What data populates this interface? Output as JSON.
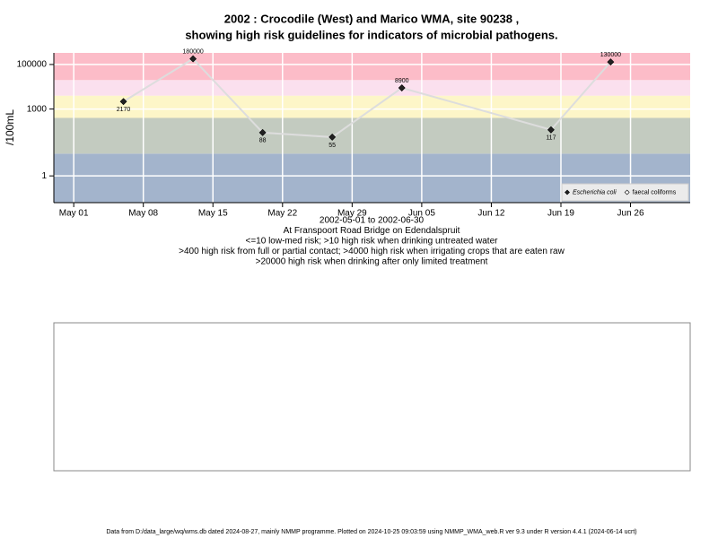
{
  "chart_data": {
    "type": "line",
    "log_y": true,
    "title": [
      "2002 : Crocodile (West) and Marico WMA, site 90238 ,",
      "showing high risk guidelines for indicators of microbial pathogens."
    ],
    "ylabel": "/100mL",
    "xlabel": [
      "2002-05-01 to 2002-06-30",
      "At Franspoort Road Bridge on Edendalspruit",
      "<=10 low-med risk; >10 high risk when drinking untreated water",
      ">400 high risk from full or partial contact; >4000 high risk when irrigating crops that are eaten raw",
      ">20000 high risk when drinking after only limited treatment"
    ],
    "footer": "Data from D:/data_large/wq/wms.db dated 2024-08-27, mainly NMMP programme. Plotted on 2024-10-25 09:03:59 using NMMP_WMA_web.R ver 9.3 under R version 4.4.1 (2024-06-14 ucrt)",
    "x": [
      "2002-05-06",
      "2002-05-13",
      "2002-05-20",
      "2002-05-27",
      "2002-06-03",
      "2002-06-18",
      "2002-06-24"
    ],
    "series": [
      {
        "name": "Escherichia coli",
        "color": "#222222",
        "line_color": "#dddddd",
        "values": [
          2170,
          180000,
          88,
          55,
          8900,
          117,
          130000
        ]
      },
      {
        "name": "faecal coliforms",
        "color": "#ffffff",
        "line_color": "#dddddd",
        "values": [
          null,
          null,
          null,
          null,
          null,
          null,
          null
        ]
      }
    ],
    "thresholds": [
      10,
      400,
      4000,
      20000
    ],
    "band_colors": [
      "#a3b4cc",
      "#c3cbc0",
      "#fdf6c8",
      "#fbe0ee",
      "#fcbcc8"
    ],
    "xlim": [
      "2002-04-29",
      "2002-07-02"
    ],
    "xticks": [
      {
        "value": "2002-05-01",
        "label": "May 01"
      },
      {
        "value": "2002-05-08",
        "label": "May 08"
      },
      {
        "value": "2002-05-15",
        "label": "May 15"
      },
      {
        "value": "2002-05-22",
        "label": "May 22"
      },
      {
        "value": "2002-05-29",
        "label": "May 29"
      },
      {
        "value": "2002-06-05",
        "label": "Jun 05"
      },
      {
        "value": "2002-06-12",
        "label": "Jun 12"
      },
      {
        "value": "2002-06-19",
        "label": "Jun 19"
      },
      {
        "value": "2002-06-26",
        "label": "Jun 26"
      }
    ],
    "ylim": [
      0.063,
      331000
    ],
    "yticks": [
      1,
      1000,
      100000
    ],
    "grid": true,
    "legend": "bottom right"
  }
}
